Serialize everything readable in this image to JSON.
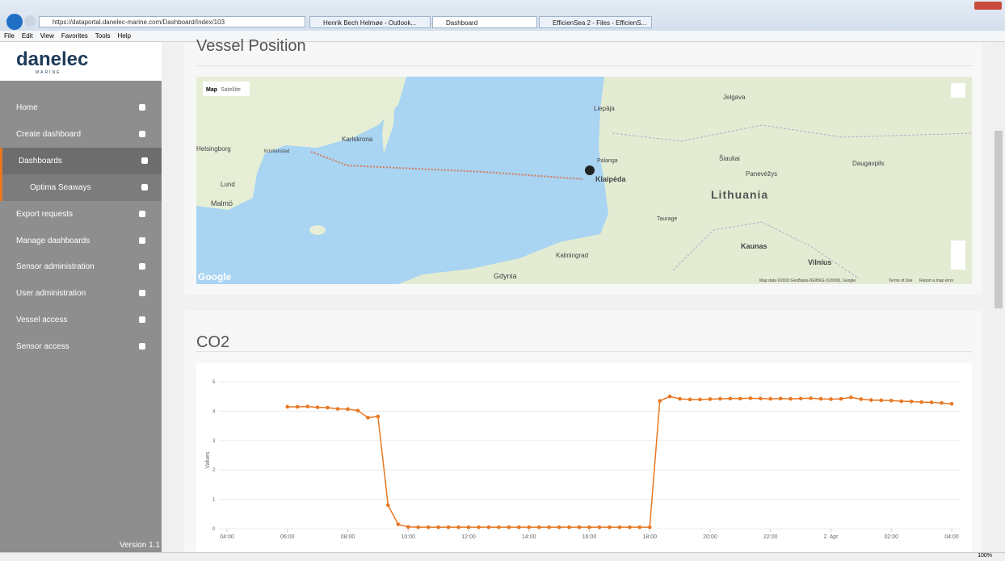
{
  "browser": {
    "url": "https://dataportal.danelec-marine.com/Dashboard/Index/103",
    "tabs": [
      "Henrik Bech Helmøe - Outlook...",
      "Dashboard",
      "EfficienSea 2 - Files - EfficienS..."
    ],
    "menu": [
      "File",
      "Edit",
      "View",
      "Favorites",
      "Tools",
      "Help"
    ],
    "zoom": "100%"
  },
  "sidebar": {
    "logo": "danelec",
    "logo_sub": "MARINE",
    "items": [
      "Home",
      "Create dashboard",
      "Dashboards",
      "Optima Seaways",
      "Export requests",
      "Manage dashboards",
      "Sensor administration",
      "User administration",
      "Vessel access",
      "Sensor access"
    ],
    "version": "Version 1.1"
  },
  "vessel_position": {
    "title": "Vessel Position",
    "map": {
      "buttons": [
        "Map",
        "Satellite"
      ],
      "labels": [
        "Liepāja",
        "Klaipėda",
        "Lithuania",
        "Kaunas",
        "Vilnius",
        "Gdynia",
        "Malmö",
        "Karlskrona",
        "Helsingborg",
        "Kaliningrad",
        "Jelgava",
        "Šiauliai",
        "Panevėžys",
        "Daugavpils",
        "Lund",
        "Kristianstad",
        "Palanga",
        "Tauragė"
      ],
      "logo": "Google",
      "attribution": "Map data ©2018 GeoBasis-DE/BKG (©2009), Google",
      "terms": "Terms of Use",
      "report": "Report a map error"
    }
  },
  "co2": {
    "title": "CO2"
  },
  "chart_data": {
    "type": "line",
    "y_label": "Values",
    "color": "#e87722",
    "grid": true,
    "x": [
      120,
      140,
      160,
      180,
      200,
      220,
      240,
      260,
      280,
      300,
      320,
      340,
      360,
      380,
      400,
      420,
      440,
      460,
      480,
      500,
      520,
      540,
      560,
      580,
      600,
      620,
      640,
      660,
      680,
      700,
      720,
      740,
      760,
      780,
      800,
      820,
      840,
      860,
      880,
      900,
      920,
      940,
      960,
      980,
      1000,
      1020,
      1040,
      1060,
      1080,
      1100,
      1120,
      1140,
      1160,
      1180,
      1200,
      1220,
      1240,
      1260,
      1280,
      1300,
      1320,
      1340,
      1360,
      1380,
      1400,
      1420,
      1440
    ],
    "values": [
      4.15,
      4.15,
      4.16,
      4.13,
      4.12,
      4.08,
      4.07,
      4.02,
      3.78,
      3.82,
      0.8,
      0.15,
      0.06,
      0.05,
      0.05,
      0.05,
      0.05,
      0.05,
      0.05,
      0.05,
      0.05,
      0.05,
      0.05,
      0.05,
      0.05,
      0.05,
      0.05,
      0.05,
      0.05,
      0.05,
      0.05,
      0.05,
      0.05,
      0.05,
      0.05,
      0.05,
      0.05,
      4.35,
      4.5,
      4.42,
      4.4,
      4.4,
      4.41,
      4.42,
      4.43,
      4.43,
      4.44,
      4.43,
      4.42,
      4.43,
      4.42,
      4.43,
      4.44,
      4.42,
      4.41,
      4.42,
      4.47,
      4.41,
      4.38,
      4.37,
      4.36,
      4.34,
      4.33,
      4.31,
      4.3,
      4.28,
      4.25
    ],
    "xlim": [
      0,
      1440
    ],
    "xticks": [
      {
        "value": 0,
        "label": "04:00"
      },
      {
        "value": 120,
        "label": "06:00"
      },
      {
        "value": 240,
        "label": "08:00"
      },
      {
        "value": 360,
        "label": "10:00"
      },
      {
        "value": 480,
        "label": "12:00"
      },
      {
        "value": 600,
        "label": "14:00"
      },
      {
        "value": 720,
        "label": "16:00"
      },
      {
        "value": 840,
        "label": "18:00"
      },
      {
        "value": 960,
        "label": "20:00"
      },
      {
        "value": 1080,
        "label": "22:00"
      },
      {
        "value": 1200,
        "label": "2. Apr"
      },
      {
        "value": 1320,
        "label": "02:00"
      },
      {
        "value": 1440,
        "label": "04:00"
      }
    ],
    "ylim": [
      0,
      5
    ],
    "yticks": [
      0,
      1,
      2,
      3,
      4,
      5
    ]
  }
}
